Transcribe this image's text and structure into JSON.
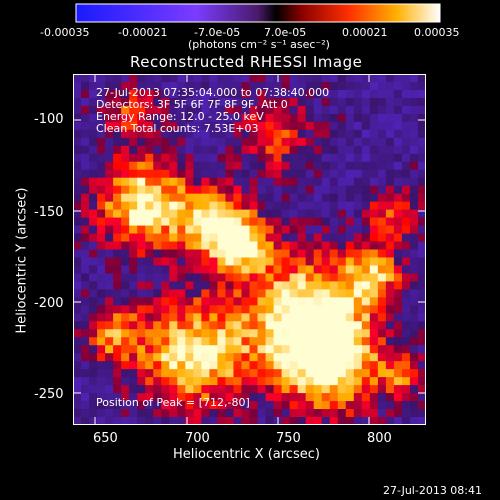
{
  "colorbar": {
    "tick_labels": [
      "-0.00035",
      "-0.00021",
      "-7.0e-05",
      "7.0e-05",
      "0.00021",
      "0.00035"
    ],
    "units": "(photons cm⁻² s⁻¹ asec⁻²)",
    "range": [
      -0.00035,
      0.00035
    ]
  },
  "title": "Reconstructed RHESSI Image",
  "info_lines": [
    "27-Jul-2013 07:35:04.000 to 07:38:40.000",
    "Detectors: 3F 5F 6F 7F 8F 9F, Att 0",
    "Energy Range: 12.0 - 25.0 keV",
    "Clean    Total counts: 7.53E+03"
  ],
  "peak_label": "Position of Peak = [712,-80]",
  "xaxis": {
    "label": "Heliocentric X (arcsec)",
    "ticks": [
      "650",
      "700",
      "750",
      "800"
    ],
    "range": [
      632,
      826
    ]
  },
  "yaxis": {
    "label": "Heliocentric Y (arcsec)",
    "ticks": [
      "-100",
      "-150",
      "-200",
      "-250"
    ],
    "range": [
      -266,
      -78
    ]
  },
  "timestamp": "27-Jul-2013 08:41"
}
